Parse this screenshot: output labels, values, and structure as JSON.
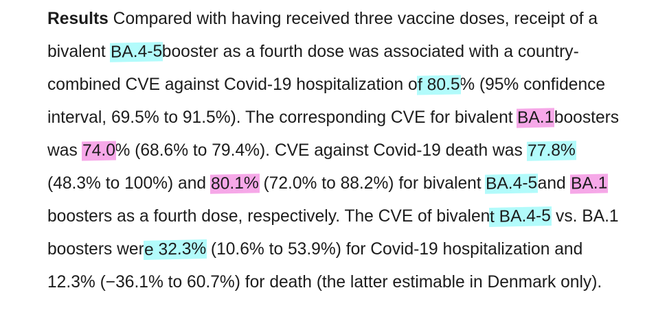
{
  "paragraph": {
    "label": "Results",
    "seg1": " Compared with having received three vaccine doses, receipt of a bivalent ",
    "h1": "BA.4-5 ",
    "seg2": "booster as a fourth dose was associated with a country-combined CVE against Covid-19 hospitalization o",
    "h2": "f 80.5",
    "seg3": "% (95% confidence interval, 69.5% to 91.5%). The corresponding CVE for bivalent ",
    "h3": "BA.1 ",
    "seg4": "boosters was ",
    "h4": "74.0",
    "seg5": "% (68.6% to 79.4%). CVE against Covid-19 death was ",
    "h5": "77.8%",
    "seg6": " (48.3% to 100%) and ",
    "h6": "80.1%",
    "seg7": " (72.0% to 88.2%) for bivalent ",
    "h7": "BA.4-5 ",
    "seg8": "and ",
    "h8": "BA.1",
    "seg9": " boosters as a fourth dose, respectively. The CVE of bivalen",
    "h9": "t BA.4-5",
    "seg10": " vs. BA.1 boosters wer",
    "h10": "e 32.3%",
    "seg11": " (10.6% to 53.9%) for Covid-19 hospitalization and 12.3% (−36.1% to 60.7%) for death (the latter estimable in Denmark only)."
  },
  "colors": {
    "highlight_cyan": "#b2fbfb",
    "highlight_pink": "#f6a8e8",
    "text": "#1c1c1c"
  }
}
